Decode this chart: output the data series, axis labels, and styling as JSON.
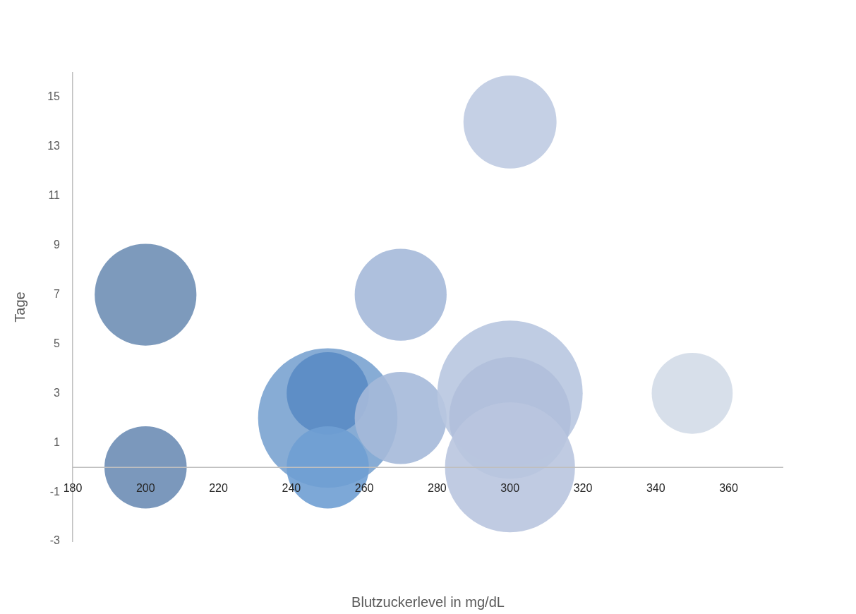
{
  "chart_data": {
    "type": "bubble",
    "xlabel": "Blutzuckerlevel in mg/dL",
    "ylabel": "Tage",
    "x": [
      200,
      200,
      250,
      250,
      250,
      270,
      270,
      300,
      300,
      300,
      300,
      350
    ],
    "values": [
      7,
      0,
      2,
      3,
      0,
      7,
      2,
      14,
      3,
      2,
      0,
      3
    ],
    "sizes": [
      0.49,
      0.32,
      0.92,
      0.32,
      0.32,
      0.4,
      0.4,
      0.41,
      1,
      0.7,
      0.8,
      0.31
    ],
    "colors": [
      "#6f8fb5",
      "#6d8db5",
      "#7aa3d0",
      "#5a8bc4",
      "#6f9ed3",
      "#a5b9d9",
      "#a5b9d9",
      "#bfcbe2",
      "#b8c6e0",
      "#b0bfda",
      "#b9c5df",
      "#d3dbe8"
    ],
    "xlim": [
      180,
      375
    ],
    "xticks": [
      180,
      200,
      220,
      240,
      260,
      280,
      300,
      320,
      340,
      360
    ],
    "ylim": [
      -3,
      16
    ],
    "yticks": [
      -3,
      -1,
      1,
      3,
      5,
      7,
      9,
      11,
      13,
      15
    ],
    "grid": false,
    "legend": false
  }
}
